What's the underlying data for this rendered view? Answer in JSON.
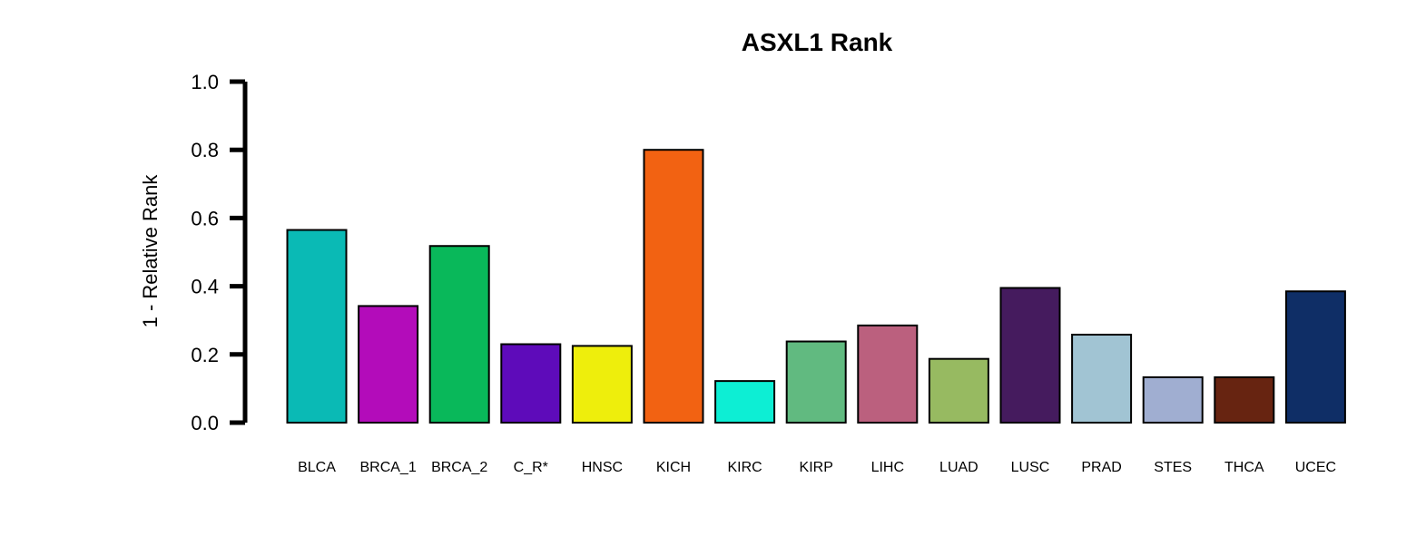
{
  "chart_data": {
    "type": "bar",
    "title": "ASXL1 Rank",
    "xlabel": "",
    "ylabel": "1 - Relative Rank",
    "ylim": [
      0,
      1
    ],
    "yticks": [
      "0.0",
      "0.2",
      "0.4",
      "0.6",
      "0.8",
      "1.0"
    ],
    "grid": false,
    "categories": [
      "BLCA",
      "BRCA_1",
      "BRCA_2",
      "C_R*",
      "HNSC",
      "KICH",
      "KIRC",
      "KIRP",
      "LIHC",
      "LUAD",
      "LUSC",
      "PRAD",
      "STES",
      "THCA",
      "UCEC"
    ],
    "values": [
      0.565,
      0.342,
      0.518,
      0.23,
      0.225,
      0.8,
      0.122,
      0.238,
      0.285,
      0.187,
      0.395,
      0.258,
      0.133,
      0.133,
      0.385
    ],
    "colors": [
      "#0ABAB5",
      "#B30CBA",
      "#09B85A",
      "#5E0BBA",
      "#EEEE0C",
      "#F26212",
      "#0DEED4",
      "#61BA80",
      "#BB607E",
      "#97BA61",
      "#451B5E",
      "#A1C4D3",
      "#A0AED1",
      "#672411",
      "#0F2E66"
    ]
  }
}
